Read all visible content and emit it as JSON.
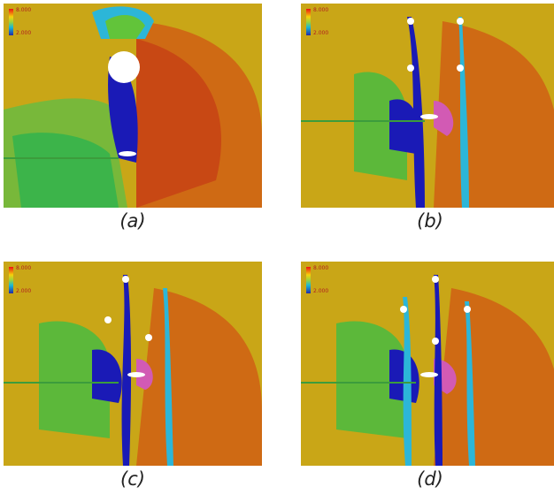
{
  "panels": [
    {
      "caption": "(a)",
      "legend_max": "8.000",
      "legend_min": "2.000"
    },
    {
      "caption": "(b)",
      "legend_max": "8.000",
      "legend_min": "2.000"
    },
    {
      "caption": "(c)",
      "legend_max": "8.000",
      "legend_min": "2.000"
    },
    {
      "caption": "(d)",
      "legend_max": "8.000",
      "legend_min": "2.000"
    }
  ],
  "colors": {
    "background_field": "#c9a617",
    "high_pressure": "#cc4a12",
    "low_pressure": "#1414b4",
    "mid_green": "#5cb83a",
    "cylinder": "#ffffff",
    "hotspot": "#d25ab4"
  }
}
